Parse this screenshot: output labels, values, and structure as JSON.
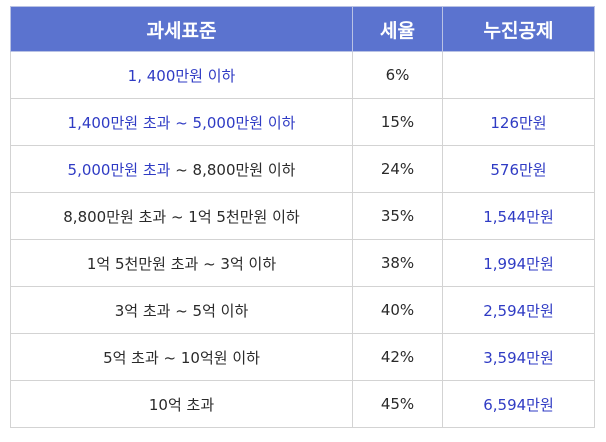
{
  "table": {
    "headers": [
      "과세표준",
      "세율",
      "누진공제"
    ],
    "rows": [
      {
        "base_a": "1, 400만원 이하",
        "base_b": "",
        "rate": "6%",
        "deduction": ""
      },
      {
        "base_a": "1,400만원 초과 ~ 5,000만원 이하",
        "base_b": "",
        "rate": "15%",
        "deduction": "126만원"
      },
      {
        "base_a": "5,000만원 초과",
        "base_b": " ~ 8,800만원 이하",
        "rate": "24%",
        "deduction": "576만원"
      },
      {
        "base_a": "",
        "base_b": "8,800만원 초과 ~ 1억 5천만원 이하",
        "rate": "35%",
        "deduction": "1,544만원"
      },
      {
        "base_a": "",
        "base_b": "1억 5천만원 초과 ~ 3억 이하",
        "rate": "38%",
        "deduction": "1,994만원"
      },
      {
        "base_a": "",
        "base_b": "3억 초과 ~ 5억 이하",
        "rate": "40%",
        "deduction": "2,594만원"
      },
      {
        "base_a": "",
        "base_b": "5억 초과 ~ 10억원 이하",
        "rate": "42%",
        "deduction": "3,594만원"
      },
      {
        "base_a": "",
        "base_b": "10억 초과",
        "rate": "45%",
        "deduction": "6,594만원"
      }
    ]
  },
  "colors": {
    "header_bg": "#5b73cf",
    "header_text": "#ffffff",
    "accent_text": "#2f3bc4",
    "body_text": "#2a2a2a"
  }
}
